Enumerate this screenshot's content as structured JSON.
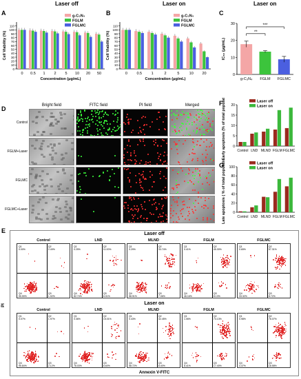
{
  "panels": {
    "A": {
      "letter": "A",
      "title": "Laser off"
    },
    "B": {
      "letter": "B",
      "title": "Laser on"
    },
    "C": {
      "letter": "C",
      "title": "Laser on"
    },
    "D": {
      "letter": "D"
    },
    "E": {
      "letter": "E"
    },
    "F": {
      "letter": "F"
    },
    "G": {
      "letter": "G"
    }
  },
  "chart_data": [
    {
      "id": "A",
      "type": "bar",
      "title": "Laser off",
      "categories": [
        "0",
        "0.5",
        "1",
        "2",
        "5",
        "10",
        "20",
        "50"
      ],
      "xlabel": "Concentration (μg/mL)",
      "ylabel": "Cell Viability (%)",
      "ylim": [
        0,
        120
      ],
      "yticks": [
        0,
        10,
        20,
        30,
        40,
        50,
        60,
        70,
        80,
        90,
        100,
        110
      ],
      "series": [
        {
          "name": "g-C₃N₄",
          "color": "#f4a6a6",
          "values": [
            100,
            99,
            98,
            97,
            96,
            95,
            93,
            90
          ]
        },
        {
          "name": "FGLM",
          "color": "#3cc43c",
          "values": [
            100,
            98,
            97,
            96,
            95,
            94,
            92,
            88
          ]
        },
        {
          "name": "FGLMC",
          "color": "#4b5fe0",
          "values": [
            100,
            95,
            93,
            91,
            89,
            86,
            82,
            70
          ]
        }
      ],
      "legend": "top-right"
    },
    {
      "id": "B",
      "type": "bar",
      "title": "Laser on",
      "categories": [
        "0",
        "0.5",
        "1",
        "2",
        "5",
        "10",
        "20"
      ],
      "xlabel": "Concentration (μg/mL)",
      "ylabel": "Cell Viability (%)",
      "ylim": [
        0,
        120
      ],
      "yticks": [
        0,
        10,
        20,
        30,
        40,
        50,
        60,
        70,
        80,
        90,
        100,
        110
      ],
      "series": [
        {
          "name": "g-C₃N₄",
          "color": "#f4a6a6",
          "values": [
            100,
            97,
            95,
            90,
            85,
            78,
            65
          ]
        },
        {
          "name": "FGLM",
          "color": "#3cc43c",
          "values": [
            100,
            95,
            92,
            86,
            78,
            68,
            45
          ]
        },
        {
          "name": "FGLMC",
          "color": "#4b5fe0",
          "values": [
            100,
            92,
            88,
            80,
            70,
            55,
            30
          ]
        }
      ],
      "legend": "top-right"
    },
    {
      "id": "C",
      "type": "bar",
      "title": "Laser on",
      "categories": [
        "g-C₃N₄",
        "FGLM",
        "FGLMC"
      ],
      "ylabel": "IC₅₀ (μg/mL)",
      "ylim": [
        0,
        30
      ],
      "yticks": [
        0,
        10,
        20,
        30
      ],
      "values": [
        17.8,
        13.4,
        8.9
      ],
      "errors": [
        1.8,
        0.6,
        1.7
      ],
      "colors": [
        "#f4a6a6",
        "#3cc43c",
        "#4b5fe0"
      ],
      "annotations": [
        "***",
        "**"
      ]
    },
    {
      "id": "F",
      "type": "bar",
      "categories": [
        "Control",
        "LND",
        "MLND",
        "FGLM",
        "FGLMC"
      ],
      "ylabel": "Early apoptosis (% of total population)",
      "ylim": [
        0,
        20
      ],
      "yticks": [
        0,
        5,
        10,
        15,
        20
      ],
      "series": [
        {
          "name": "Laser off",
          "color": "#9b2a1e",
          "values": [
            2.0,
            6.0,
            7.0,
            8.0,
            8.7
          ]
        },
        {
          "name": "Laser on",
          "color": "#3cb83c",
          "values": [
            2.0,
            6.6,
            8.4,
            17.4,
            18.6
          ]
        }
      ],
      "legend": "top-left"
    },
    {
      "id": "G",
      "type": "bar",
      "categories": [
        "Control",
        "LND",
        "MLND",
        "FGLM",
        "FGLMC"
      ],
      "ylabel": "Late apoptosis ( % of total population)",
      "ylim": [
        0,
        100
      ],
      "yticks": [
        0,
        20,
        40,
        60,
        80,
        100
      ],
      "series": [
        {
          "name": "Laser off",
          "color": "#9b2a1e",
          "values": [
            2.0,
            11.0,
            34.0,
            45.0,
            57.0
          ]
        },
        {
          "name": "Laser on",
          "color": "#3cb83c",
          "values": [
            2.0,
            15.0,
            33.0,
            73.0,
            76.0
          ]
        }
      ],
      "legend": "top-left"
    }
  ],
  "microscopy": {
    "headers": [
      "Bright field",
      "FITC field",
      "PI field",
      "Merged"
    ],
    "rows": [
      "Control",
      "FGLM+Laser",
      "FGLMC",
      "FGLMC+Laser"
    ]
  },
  "flow": {
    "section_off": "Laser off",
    "section_on": "Laser on",
    "ylabel": "PI",
    "xlabel": "Annexin V-FITC",
    "quadrant_names": [
      "Q1",
      "Q2",
      "Q3",
      "Q4"
    ],
    "rows": [
      {
        "plots": [
          {
            "title": "Control",
            "q1": "0.00%",
            "q2": "2.49%",
            "q3": "1.92%",
            "q4": "95.59%"
          },
          {
            "title": "LND",
            "q1": "0.25%",
            "q2": "11.00%",
            "q3": "6.01%",
            "q4": "82.74%"
          },
          {
            "title": "MLND",
            "q1": "0.29%",
            "q2": "33.74%",
            "q3": "7.06%",
            "q4": "58.91%"
          },
          {
            "title": "FGLM",
            "q1": "0.41%",
            "q2": "45.30%",
            "q3": "8.13%",
            "q4": "46.16%"
          },
          {
            "title": "FGLMC",
            "q1": "0.65%",
            "q2": "57.31%",
            "q3": "8.72%",
            "q4": "33.32%"
          }
        ]
      },
      {
        "plots": [
          {
            "title": "Control",
            "q1": "0.07%",
            "q2": "1.97%",
            "q3": "2.12%",
            "q4": "95.84%"
          },
          {
            "title": "LND",
            "q1": "0.36%",
            "q2": "15.01%",
            "q3": "6.60%",
            "q4": "78.03%"
          },
          {
            "title": "MLND",
            "q1": "0.43%",
            "q2": "32.45%",
            "q3": "8.40%",
            "q4": "58.72%"
          },
          {
            "title": "FGLM",
            "q1": "1.06%",
            "q2": "73.13%",
            "q3": "17.40%",
            "q4": "8.41%"
          },
          {
            "title": "FGLMC",
            "q1": "0.98%",
            "q2": "76.07%",
            "q3": "18.58%",
            "q4": "4.37%"
          }
        ]
      }
    ],
    "dot_color": "#e02020"
  }
}
